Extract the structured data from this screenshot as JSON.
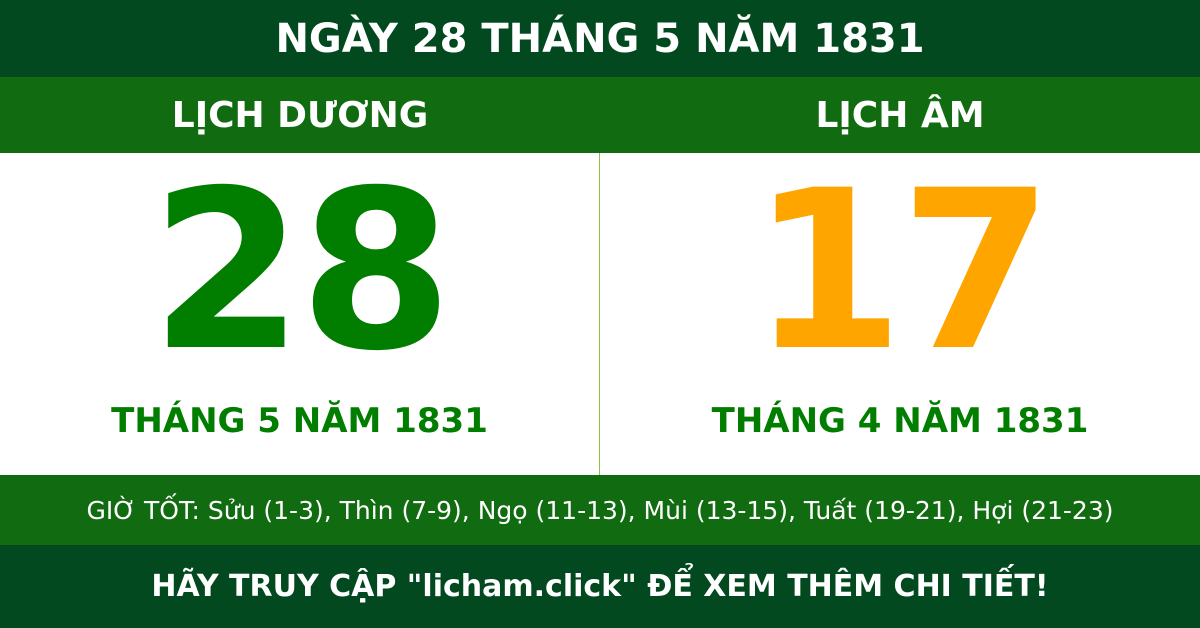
{
  "header": {
    "title": "NGÀY 28 THÁNG 5 NĂM 1831"
  },
  "solar": {
    "label": "LỊCH DƯƠNG",
    "day": "28",
    "month_year": "THÁNG 5 NĂM 1831",
    "color": "#017d00"
  },
  "lunar": {
    "label": "LỊCH ÂM",
    "day": "17",
    "month_year": "THÁNG 4 NĂM 1831",
    "color": "#ffa500"
  },
  "good_hours": "GIỜ TỐT: Sửu (1-3), Thìn (7-9), Ngọ (11-13), Mùi (13-15), Tuất (19-21), Hợi (21-23)",
  "footer": "HÃY TRUY CẬP \"licham.click\" ĐỂ XEM THÊM CHI TIẾT!"
}
